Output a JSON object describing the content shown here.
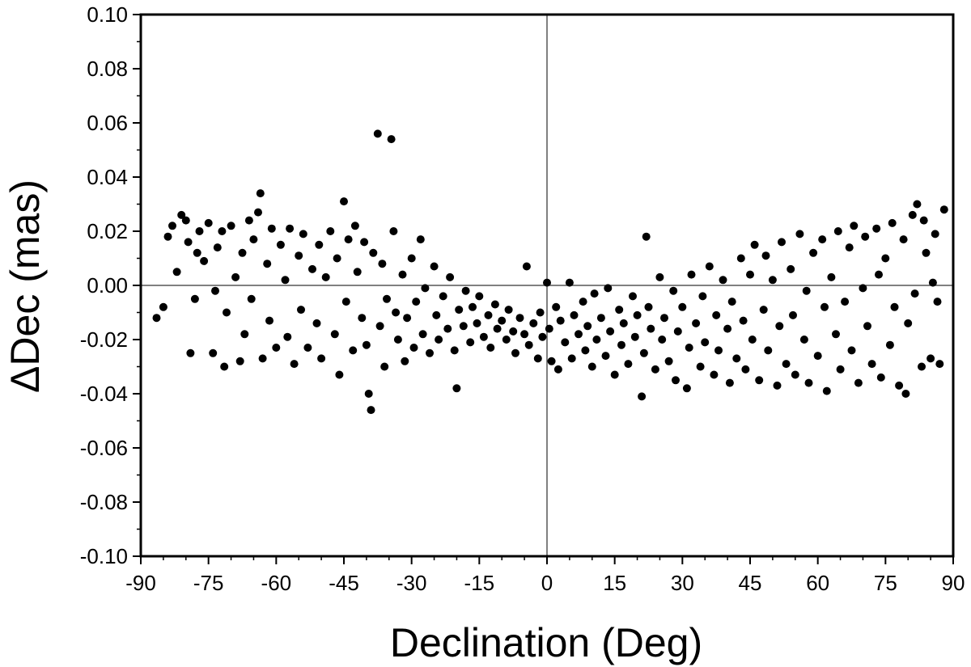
{
  "chart_data": {
    "type": "scatter",
    "xlabel": "Declination (Deg)",
    "ylabel": "ΔDec (mas)",
    "xlim": [
      -90,
      90
    ],
    "ylim": [
      -0.1,
      0.1
    ],
    "x_ticks": [
      "-90",
      "-75",
      "-60",
      "-45",
      "-30",
      "-15",
      "0",
      "15",
      "30",
      "45",
      "60",
      "75",
      "90"
    ],
    "y_ticks": [
      "0.10",
      "0.08",
      "0.06",
      "0.04",
      "0.02",
      "0.00",
      "-0.02",
      "-0.04",
      "-0.06",
      "-0.08",
      "-0.10"
    ],
    "reference_lines": {
      "x": 0,
      "y": 0
    },
    "grid": false,
    "marker_color": "#000000",
    "series": [
      {
        "points": [
          [
            -86.5,
            -0.012
          ],
          [
            -85.0,
            -0.008
          ],
          [
            -84.0,
            0.018
          ],
          [
            -83.0,
            0.022
          ],
          [
            -82.0,
            0.005
          ],
          [
            -81.0,
            0.026
          ],
          [
            -80.0,
            0.024
          ],
          [
            -79.5,
            0.016
          ],
          [
            -79.0,
            -0.025
          ],
          [
            -78.0,
            -0.005
          ],
          [
            -77.5,
            0.012
          ],
          [
            -77.0,
            0.02
          ],
          [
            -76.0,
            0.009
          ],
          [
            -75.0,
            0.023
          ],
          [
            -74.0,
            -0.025
          ],
          [
            -73.5,
            -0.002
          ],
          [
            -73.0,
            0.014
          ],
          [
            -72.0,
            0.02
          ],
          [
            -71.5,
            -0.03
          ],
          [
            -71.0,
            -0.01
          ],
          [
            -70.0,
            0.022
          ],
          [
            -69.0,
            0.003
          ],
          [
            -68.0,
            -0.028
          ],
          [
            -67.5,
            0.012
          ],
          [
            -67.0,
            -0.018
          ],
          [
            -66.0,
            0.024
          ],
          [
            -65.5,
            -0.005
          ],
          [
            -65.0,
            0.017
          ],
          [
            -64.0,
            0.027
          ],
          [
            -63.5,
            0.034
          ],
          [
            -63.0,
            -0.027
          ],
          [
            -62.0,
            0.008
          ],
          [
            -61.5,
            -0.013
          ],
          [
            -61.0,
            0.021
          ],
          [
            -60.0,
            -0.023
          ],
          [
            -59.0,
            0.015
          ],
          [
            -58.0,
            0.002
          ],
          [
            -57.5,
            -0.019
          ],
          [
            -57.0,
            0.021
          ],
          [
            -56.0,
            -0.029
          ],
          [
            -55.0,
            0.011
          ],
          [
            -54.5,
            -0.009
          ],
          [
            -54.0,
            0.019
          ],
          [
            -53.0,
            -0.023
          ],
          [
            -52.0,
            0.006
          ],
          [
            -51.0,
            -0.014
          ],
          [
            -50.5,
            0.015
          ],
          [
            -50.0,
            -0.027
          ],
          [
            -49.0,
            0.003
          ],
          [
            -48.0,
            0.02
          ],
          [
            -47.0,
            -0.018
          ],
          [
            -46.5,
            0.01
          ],
          [
            -46.0,
            -0.033
          ],
          [
            -45.0,
            0.031
          ],
          [
            -44.5,
            -0.006
          ],
          [
            -44.0,
            0.017
          ],
          [
            -43.0,
            -0.024
          ],
          [
            -42.5,
            0.022
          ],
          [
            -42.0,
            0.005
          ],
          [
            -41.0,
            -0.012
          ],
          [
            -40.5,
            0.016
          ],
          [
            -40.0,
            -0.022
          ],
          [
            -39.5,
            -0.04
          ],
          [
            -39.0,
            -0.046
          ],
          [
            -38.5,
            0.012
          ],
          [
            -37.5,
            0.056
          ],
          [
            -37.0,
            -0.015
          ],
          [
            -36.5,
            0.008
          ],
          [
            -36.0,
            -0.03
          ],
          [
            -35.5,
            -0.005
          ],
          [
            -34.5,
            0.054
          ],
          [
            -34.0,
            0.02
          ],
          [
            -33.5,
            -0.01
          ],
          [
            -33.0,
            -0.02
          ],
          [
            -32.0,
            0.004
          ],
          [
            -31.5,
            -0.028
          ],
          [
            -31.0,
            -0.012
          ],
          [
            -30.0,
            0.01
          ],
          [
            -29.5,
            -0.023
          ],
          [
            -29.0,
            -0.006
          ],
          [
            -28.0,
            0.017
          ],
          [
            -27.5,
            -0.018
          ],
          [
            -27.0,
            -0.001
          ],
          [
            -26.0,
            -0.025
          ],
          [
            -25.0,
            0.007
          ],
          [
            -24.5,
            -0.011
          ],
          [
            -24.0,
            -0.02
          ],
          [
            -23.0,
            -0.004
          ],
          [
            -22.0,
            -0.016
          ],
          [
            -21.5,
            0.003
          ],
          [
            -20.5,
            -0.024
          ],
          [
            -20.0,
            -0.038
          ],
          [
            -19.5,
            -0.009
          ],
          [
            -18.5,
            -0.015
          ],
          [
            -18.0,
            -0.002
          ],
          [
            -17.0,
            -0.021
          ],
          [
            -16.5,
            -0.008
          ],
          [
            -15.5,
            -0.014
          ],
          [
            -15.0,
            -0.004
          ],
          [
            -14.0,
            -0.019
          ],
          [
            -13.0,
            -0.011
          ],
          [
            -12.5,
            -0.023
          ],
          [
            -11.5,
            -0.007
          ],
          [
            -11.0,
            -0.016
          ],
          [
            -10.0,
            -0.013
          ],
          [
            -9.0,
            -0.02
          ],
          [
            -8.5,
            -0.009
          ],
          [
            -7.5,
            -0.017
          ],
          [
            -7.0,
            -0.025
          ],
          [
            -6.0,
            -0.012
          ],
          [
            -5.0,
            -0.018
          ],
          [
            -4.5,
            0.007
          ],
          [
            -4.0,
            -0.022
          ],
          [
            -3.0,
            -0.014
          ],
          [
            -2.0,
            -0.027
          ],
          [
            -1.5,
            -0.01
          ],
          [
            -1.0,
            -0.019
          ],
          [
            0.0,
            0.001
          ],
          [
            0.5,
            -0.016
          ],
          [
            1.0,
            -0.028
          ],
          [
            2.0,
            -0.008
          ],
          [
            2.5,
            -0.031
          ],
          [
            3.0,
            -0.013
          ],
          [
            4.0,
            -0.021
          ],
          [
            5.0,
            0.001
          ],
          [
            5.5,
            -0.027
          ],
          [
            6.0,
            -0.011
          ],
          [
            7.0,
            -0.018
          ],
          [
            8.0,
            -0.006
          ],
          [
            8.5,
            -0.024
          ],
          [
            9.0,
            -0.015
          ],
          [
            10.0,
            -0.03
          ],
          [
            10.5,
            -0.003
          ],
          [
            11.0,
            -0.02
          ],
          [
            12.0,
            -0.012
          ],
          [
            13.0,
            -0.026
          ],
          [
            13.5,
            -0.001
          ],
          [
            14.0,
            -0.017
          ],
          [
            15.0,
            -0.033
          ],
          [
            16.0,
            -0.009
          ],
          [
            16.5,
            -0.022
          ],
          [
            17.0,
            -0.014
          ],
          [
            18.0,
            -0.029
          ],
          [
            19.0,
            -0.004
          ],
          [
            19.5,
            -0.019
          ],
          [
            20.0,
            -0.011
          ],
          [
            21.0,
            -0.041
          ],
          [
            21.5,
            -0.025
          ],
          [
            22.0,
            0.018
          ],
          [
            22.5,
            -0.008
          ],
          [
            23.0,
            -0.016
          ],
          [
            24.0,
            -0.031
          ],
          [
            25.0,
            0.003
          ],
          [
            25.5,
            -0.02
          ],
          [
            26.0,
            -0.012
          ],
          [
            27.0,
            -0.028
          ],
          [
            28.0,
            -0.002
          ],
          [
            28.5,
            -0.035
          ],
          [
            29.0,
            -0.017
          ],
          [
            30.0,
            -0.008
          ],
          [
            31.0,
            -0.038
          ],
          [
            31.5,
            -0.023
          ],
          [
            32.0,
            0.004
          ],
          [
            33.0,
            -0.014
          ],
          [
            34.0,
            -0.03
          ],
          [
            34.5,
            -0.004
          ],
          [
            35.0,
            -0.021
          ],
          [
            36.0,
            0.007
          ],
          [
            37.0,
            -0.033
          ],
          [
            37.5,
            -0.011
          ],
          [
            38.0,
            -0.024
          ],
          [
            39.0,
            0.002
          ],
          [
            40.0,
            -0.016
          ],
          [
            40.5,
            -0.036
          ],
          [
            41.0,
            -0.006
          ],
          [
            42.0,
            -0.027
          ],
          [
            43.0,
            0.01
          ],
          [
            43.5,
            -0.013
          ],
          [
            44.0,
            -0.031
          ],
          [
            45.0,
            0.004
          ],
          [
            45.5,
            -0.02
          ],
          [
            46.0,
            0.015
          ],
          [
            47.0,
            -0.035
          ],
          [
            48.0,
            -0.009
          ],
          [
            48.5,
            0.011
          ],
          [
            49.0,
            -0.024
          ],
          [
            50.0,
            0.002
          ],
          [
            51.0,
            -0.037
          ],
          [
            51.5,
            -0.015
          ],
          [
            52.0,
            0.016
          ],
          [
            53.0,
            -0.029
          ],
          [
            54.0,
            0.006
          ],
          [
            54.5,
            -0.011
          ],
          [
            55.0,
            -0.033
          ],
          [
            56.0,
            0.019
          ],
          [
            57.0,
            -0.02
          ],
          [
            57.5,
            -0.002
          ],
          [
            58.0,
            -0.036
          ],
          [
            59.0,
            0.012
          ],
          [
            60.0,
            -0.026
          ],
          [
            61.0,
            0.017
          ],
          [
            61.5,
            -0.008
          ],
          [
            62.0,
            -0.039
          ],
          [
            63.0,
            0.003
          ],
          [
            64.0,
            -0.018
          ],
          [
            64.5,
            0.02
          ],
          [
            65.0,
            -0.031
          ],
          [
            66.0,
            -0.006
          ],
          [
            67.0,
            0.014
          ],
          [
            67.5,
            -0.024
          ],
          [
            68.0,
            0.022
          ],
          [
            69.0,
            -0.036
          ],
          [
            70.0,
            -0.001
          ],
          [
            70.5,
            0.018
          ],
          [
            71.0,
            -0.015
          ],
          [
            72.0,
            -0.029
          ],
          [
            73.0,
            0.021
          ],
          [
            73.5,
            0.004
          ],
          [
            74.0,
            -0.034
          ],
          [
            75.0,
            0.01
          ],
          [
            76.0,
            -0.022
          ],
          [
            76.5,
            0.023
          ],
          [
            77.0,
            -0.008
          ],
          [
            78.0,
            -0.037
          ],
          [
            79.0,
            0.017
          ],
          [
            79.5,
            -0.04
          ],
          [
            80.0,
            -0.014
          ],
          [
            81.0,
            0.026
          ],
          [
            81.5,
            -0.003
          ],
          [
            82.0,
            0.03
          ],
          [
            83.0,
            -0.03
          ],
          [
            83.5,
            0.024
          ],
          [
            84.0,
            0.012
          ],
          [
            85.0,
            -0.027
          ],
          [
            85.5,
            0.001
          ],
          [
            86.0,
            0.019
          ],
          [
            86.5,
            -0.006
          ],
          [
            87.0,
            -0.029
          ],
          [
            88.0,
            0.028
          ]
        ]
      }
    ]
  }
}
